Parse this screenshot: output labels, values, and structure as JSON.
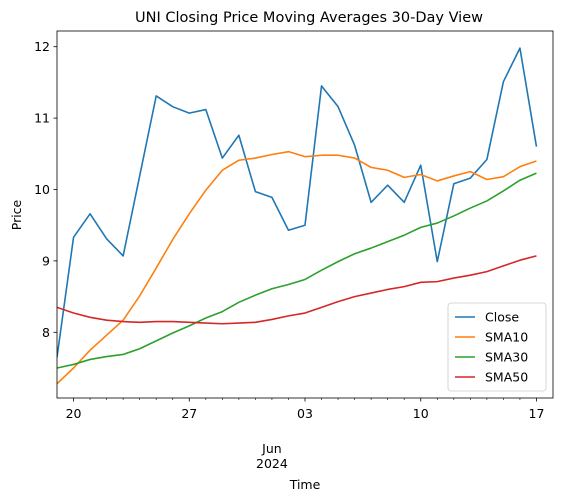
{
  "chart_data": {
    "type": "line",
    "title": "UNI Closing Price Moving Averages 30-Day View",
    "xlabel": "Time",
    "ylabel": "Price",
    "ylim": [
      7.08,
      12.22
    ],
    "yticks": [
      8,
      9,
      10,
      11,
      12
    ],
    "xlim": [
      0,
      30
    ],
    "xticks_major": [
      {
        "pos": 1,
        "label": "20"
      },
      {
        "pos": 8,
        "label": "27"
      },
      {
        "pos": 15,
        "label": "03"
      },
      {
        "pos": 22,
        "label": "10"
      },
      {
        "pos": 29,
        "label": "17"
      }
    ],
    "xticks_minor": [
      2,
      3,
      4,
      5,
      6,
      7,
      9,
      10,
      11,
      12,
      13,
      14,
      16,
      17,
      18,
      19,
      20,
      21,
      23,
      24,
      25,
      26,
      27,
      28
    ],
    "x_month_label": "Jun",
    "x_year_label": "2024",
    "x_month_pos": 13,
    "x": [
      "2024-05-19",
      "2024-05-20",
      "2024-05-21",
      "2024-05-22",
      "2024-05-23",
      "2024-05-24",
      "2024-05-25",
      "2024-05-26",
      "2024-05-27",
      "2024-05-28",
      "2024-05-29",
      "2024-05-30",
      "2024-05-31",
      "2024-06-01",
      "2024-06-02",
      "2024-06-03",
      "2024-06-04",
      "2024-06-05",
      "2024-06-06",
      "2024-06-07",
      "2024-06-08",
      "2024-06-09",
      "2024-06-10",
      "2024-06-11",
      "2024-06-12",
      "2024-06-13",
      "2024-06-14",
      "2024-06-15",
      "2024-06-16",
      "2024-06-17"
    ],
    "legend": "lower-right",
    "grid": false,
    "series": [
      {
        "name": "Close",
        "color": "#1f77b4",
        "values": [
          7.65,
          9.33,
          9.66,
          9.31,
          9.07,
          10.19,
          11.31,
          11.16,
          11.07,
          11.12,
          10.44,
          10.76,
          9.97,
          9.89,
          9.43,
          9.5,
          11.45,
          11.16,
          10.62,
          9.82,
          10.06,
          9.82,
          10.34,
          8.99,
          10.08,
          10.16,
          10.42,
          11.51,
          11.98,
          10.6
        ]
      },
      {
        "name": "SMA10",
        "color": "#ff7f0e",
        "values": [
          7.28,
          7.5,
          7.75,
          7.96,
          8.17,
          8.51,
          8.9,
          9.3,
          9.66,
          9.99,
          10.27,
          10.41,
          10.44,
          10.49,
          10.53,
          10.46,
          10.48,
          10.48,
          10.44,
          10.31,
          10.27,
          10.17,
          10.21,
          10.12,
          10.19,
          10.25,
          10.14,
          10.18,
          10.32,
          10.4
        ]
      },
      {
        "name": "SMA30",
        "color": "#2ca02c",
        "values": [
          7.5,
          7.55,
          7.62,
          7.66,
          7.69,
          7.77,
          7.88,
          7.99,
          8.09,
          8.2,
          8.29,
          8.42,
          8.52,
          8.61,
          8.67,
          8.74,
          8.87,
          8.99,
          9.1,
          9.18,
          9.27,
          9.36,
          9.47,
          9.53,
          9.63,
          9.74,
          9.84,
          9.98,
          10.13,
          10.23
        ]
      },
      {
        "name": "SMA50",
        "color": "#d62728",
        "values": [
          8.35,
          8.27,
          8.21,
          8.17,
          8.15,
          8.14,
          8.15,
          8.15,
          8.14,
          8.13,
          8.12,
          8.13,
          8.14,
          8.18,
          8.23,
          8.27,
          8.35,
          8.43,
          8.5,
          8.55,
          8.6,
          8.64,
          8.7,
          8.71,
          8.76,
          8.8,
          8.85,
          8.93,
          9.01,
          9.07
        ]
      }
    ]
  }
}
